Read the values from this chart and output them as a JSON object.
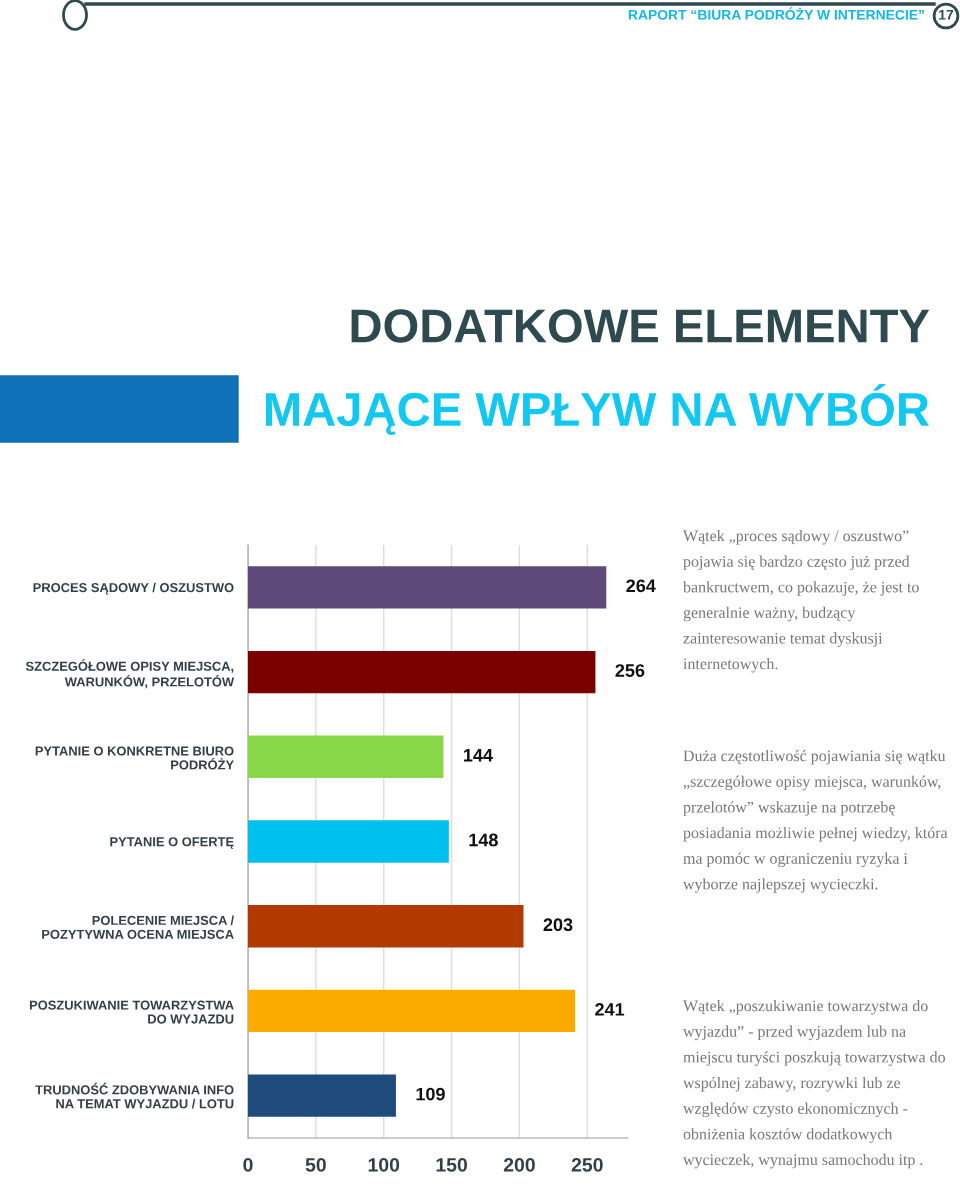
{
  "chart_data": {
    "type": "bar",
    "orientation": "horizontal",
    "title": "DODATKOWE ELEMENTY",
    "subtitle": "MAJĄCE WPŁYW NA WYBÓR",
    "categories": [
      "PROCES SĄDOWY / OSZUSTWO",
      "SZCZEGÓŁOWE OPISY MIEJSCA,\nWARUNKÓW, PRZELOTÓW",
      "PYTANIE O KONKRETNE BIURO\nPODRÓŻY",
      "PYTANIE O OFERTĘ",
      "POLECENIE MIEJSCA /\nPOZYTYWNA OCENA MIEJSCA",
      "POSZUKIWANIE TOWARZYSTWA\nDO WYJAZDU",
      "TRUDNOŚĆ ZDOBYWANIA INFO\nNA TEMAT WYJAZDU / LOTU"
    ],
    "values": [
      264,
      256,
      144,
      148,
      203,
      241,
      109
    ],
    "colors": [
      "#5f4a7c",
      "#7a0000",
      "#88d84a",
      "#00c0f0",
      "#b23a00",
      "#fbab00",
      "#1f4a7c"
    ],
    "xlim": [
      0,
      280
    ],
    "xticks": [
      0,
      50,
      100,
      150,
      200,
      250
    ],
    "grid": "x",
    "data_labels": true,
    "annotations": [
      "RAPORT “BIURA PODRÓŻY W INTERNECIE”",
      "17",
      "Wątek „proces sądowy / oszustwo” pojawia się bardzo często już przed bankructwem, co pokazuje, że jest to generalnie ważny, budzący zainteresowanie temat dyskusji internetowych.",
      "Duża częstotliwość pojawiania się wątku „szczegółowe opisy miejsca, warunków, przelotów” wskazuje na potrzebę posiadania możliwie pełnej wiedzy, która ma pomóc w ograniczeniu ryzyka i wyborze najlepszej wycieczki.",
      "Wątek „poszukiwanie towarzystwa do wyjazdu” - przed wyjazdem lub na miejscu turyści poszkują towarzystwa do wspólnej zabawy, rozrywki lub ze względów czysto ekonomicznych - obniżenia kosztów dodatkowych wycieczek, wynajmu samochodu itp ."
    ]
  }
}
